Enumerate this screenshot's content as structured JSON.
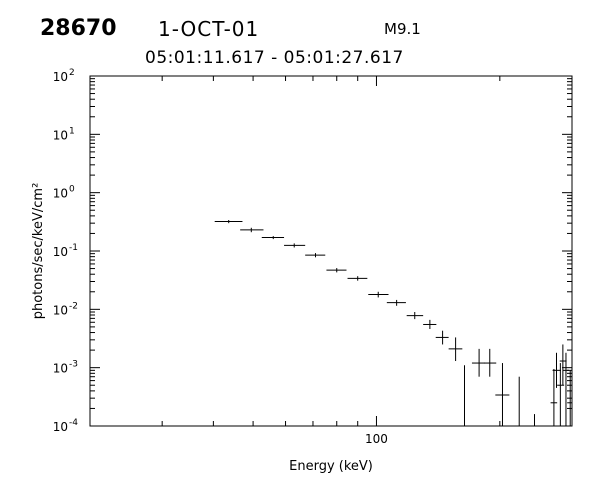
{
  "header": {
    "event_id": "28670",
    "date": "1-OCT-01",
    "flare_class": "M9.1",
    "time_range": "05:01:11.617 - 05:01:27.617"
  },
  "chart_data": {
    "type": "scatter",
    "title": "",
    "xlabel": "Energy (keV)",
    "ylabel": "photons/sec/keV/cm²",
    "xscale": "log",
    "yscale": "log",
    "xlim": [
      20,
      300
    ],
    "ylim": [
      0.0001,
      100
    ],
    "x_tick_labels": [
      {
        "value": 100,
        "label": "100"
      }
    ],
    "y_ticks": [
      {
        "value": 0.0001,
        "exp": "-4"
      },
      {
        "value": 0.001,
        "exp": "-3"
      },
      {
        "value": 0.01,
        "exp": "-2"
      },
      {
        "value": 0.1,
        "exp": "-1"
      },
      {
        "value": 1,
        "exp": "0"
      },
      {
        "value": 10,
        "exp": "1"
      },
      {
        "value": 100,
        "exp": "2"
      }
    ],
    "grid": false,
    "series": [
      {
        "points": [
          {
            "x": 43.6,
            "y": 0.32,
            "x_lo": 40.3,
            "x_hi": 47.1,
            "y_lo": 0.3,
            "y_hi": 0.34
          },
          {
            "x": 49.5,
            "y": 0.23,
            "x_lo": 46.5,
            "x_hi": 53.0,
            "y_lo": 0.21,
            "y_hi": 0.25
          },
          {
            "x": 56.0,
            "y": 0.17,
            "x_lo": 52.5,
            "x_hi": 59.5,
            "y_lo": 0.16,
            "y_hi": 0.18
          },
          {
            "x": 63.0,
            "y": 0.125,
            "x_lo": 59.5,
            "x_hi": 67.0,
            "y_lo": 0.115,
            "y_hi": 0.135
          },
          {
            "x": 71.0,
            "y": 0.085,
            "x_lo": 67.0,
            "x_hi": 75.0,
            "y_lo": 0.078,
            "y_hi": 0.092
          },
          {
            "x": 80.0,
            "y": 0.047,
            "x_lo": 75.5,
            "x_hi": 84.5,
            "y_lo": 0.043,
            "y_hi": 0.051
          },
          {
            "x": 90.0,
            "y": 0.034,
            "x_lo": 85.0,
            "x_hi": 95.0,
            "y_lo": 0.031,
            "y_hi": 0.037
          },
          {
            "x": 101.0,
            "y": 0.018,
            "x_lo": 95.5,
            "x_hi": 107.0,
            "y_lo": 0.016,
            "y_hi": 0.02
          },
          {
            "x": 112.0,
            "y": 0.013,
            "x_lo": 106.0,
            "x_hi": 118.0,
            "y_lo": 0.0115,
            "y_hi": 0.0145
          },
          {
            "x": 124.0,
            "y": 0.0078,
            "x_lo": 118.5,
            "x_hi": 130.0,
            "y_lo": 0.0068,
            "y_hi": 0.009
          },
          {
            "x": 135.0,
            "y": 0.0055,
            "x_lo": 130.0,
            "x_hi": 140.0,
            "y_lo": 0.0046,
            "y_hi": 0.0066
          },
          {
            "x": 145.0,
            "y": 0.0033,
            "x_lo": 139.5,
            "x_hi": 150.0,
            "y_lo": 0.0025,
            "y_hi": 0.0043
          },
          {
            "x": 156.0,
            "y": 0.0021,
            "x_lo": 150.0,
            "x_hi": 162.0,
            "y_lo": 0.0013,
            "y_hi": 0.0033
          },
          {
            "x": 164.0,
            "y": null,
            "y_lo": 0.0001,
            "y_hi": 0.0011
          },
          {
            "x": 178.0,
            "y": 0.0012,
            "x_lo": 171.0,
            "x_hi": 184.0,
            "y_lo": 0.0007,
            "y_hi": 0.0021
          },
          {
            "x": 189.0,
            "y": 0.0012,
            "x_lo": 183.0,
            "x_hi": 196.0,
            "y_lo": 0.0007,
            "y_hi": 0.0021
          },
          {
            "x": 203.0,
            "y": 0.00034,
            "x_lo": 195.0,
            "x_hi": 211.0,
            "y_lo": 0.0001,
            "y_hi": 0.0012
          },
          {
            "x": 223.0,
            "y": null,
            "y_lo": 0.0001,
            "y_hi": 0.0007
          },
          {
            "x": 243.0,
            "y": null,
            "y_lo": 0.0001,
            "y_hi": 0.00016
          },
          {
            "x": 271.0,
            "y": 0.00025,
            "x_lo": 266.0,
            "x_hi": 276.0,
            "y_lo": 0.0001,
            "y_hi": 0.00095
          },
          {
            "x": 275.0,
            "y": 0.0009,
            "x_lo": 269.0,
            "x_hi": 282.0,
            "y_lo": 0.00045,
            "y_hi": 0.0018
          },
          {
            "x": 281.0,
            "y": 0.0005,
            "x_lo": 276.0,
            "x_hi": 287.0,
            "y_lo": 0.0001,
            "y_hi": 0.0012
          },
          {
            "x": 285.0,
            "y": 0.0013,
            "x_lo": 280.0,
            "x_hi": 291.0,
            "y_lo": 0.0005,
            "y_hi": 0.0025
          },
          {
            "x": 290.0,
            "y": 0.0009,
            "x_lo": 285.0,
            "x_hi": 295.0,
            "y_lo": 0.0001,
            "y_hi": 0.0018
          },
          {
            "x": 297.0,
            "y": 0.00025,
            "x_lo": 292.0,
            "x_hi": 300.0,
            "y_lo": 0.0001,
            "y_hi": 0.0009
          }
        ]
      }
    ]
  }
}
